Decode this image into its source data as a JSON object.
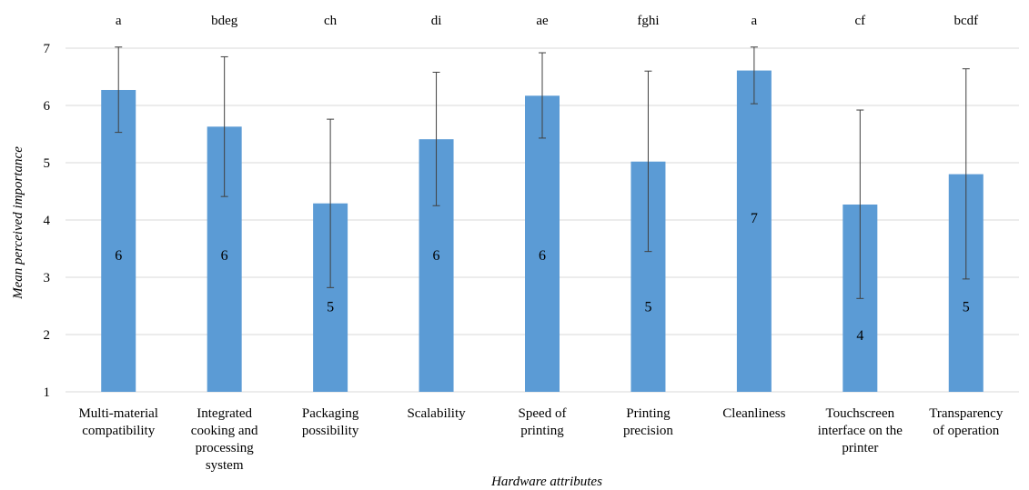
{
  "chart_data": {
    "type": "bar",
    "title": "",
    "xlabel": "Hardware attributes",
    "ylabel": "Mean perceived importance",
    "ylim": [
      1,
      7
    ],
    "yticks": [
      1,
      2,
      3,
      4,
      5,
      6,
      7
    ],
    "grid": true,
    "legend": "none",
    "bar_color": "#5b9bd5",
    "categories": [
      [
        "Multi-material",
        "compatibility"
      ],
      [
        "Integrated",
        "cooking and",
        "processing",
        "system"
      ],
      [
        "Packaging",
        "possibility"
      ],
      [
        "Scalability"
      ],
      [
        "Speed of",
        "printing"
      ],
      [
        "Printing",
        "precision"
      ],
      [
        "Cleanliness"
      ],
      [
        "Touchscreen",
        "interface on the",
        "printer"
      ],
      [
        "Transparency",
        "of operation"
      ]
    ],
    "values": [
      6.27,
      5.63,
      4.29,
      5.41,
      6.17,
      5.02,
      6.61,
      4.27,
      4.8
    ],
    "error_low": [
      5.53,
      4.41,
      2.82,
      4.25,
      5.43,
      3.45,
      6.03,
      2.63,
      2.97
    ],
    "error_high": [
      7.02,
      6.85,
      5.76,
      6.58,
      6.92,
      6.6,
      7.02,
      5.92,
      6.64
    ],
    "group_letters": [
      "a",
      "bdeg",
      "ch",
      "di",
      "ae",
      "fghi",
      "a",
      "cf",
      "bcdf"
    ],
    "medians": [
      "6",
      "6",
      "5",
      "6",
      "6",
      "5",
      "7",
      "4",
      "5"
    ],
    "median_label_y": [
      3.4,
      3.4,
      2.5,
      3.4,
      3.4,
      2.5,
      4.05,
      2.0,
      2.5
    ]
  }
}
